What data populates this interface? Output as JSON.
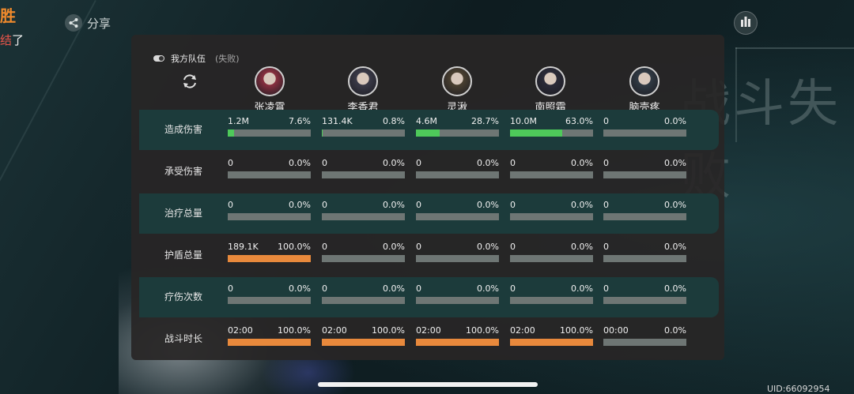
{
  "top": {
    "title": "胜",
    "subtitle_red": "结",
    "subtitle_white": "了",
    "share_label": "分享"
  },
  "panel": {
    "team_label": "我方队伍",
    "team_status": "(失败)"
  },
  "heroes": [
    "张凌霄",
    "李香君",
    "灵湫",
    "南照霜",
    "脑壳疼"
  ],
  "rows": [
    {
      "label": "造成伤害",
      "cells": [
        {
          "value": "1.2M",
          "percent": "7.6%",
          "fill": 0.076,
          "color": "#4ec95a"
        },
        {
          "value": "131.4K",
          "percent": "0.8%",
          "fill": 0.008,
          "color": "#4ec95a"
        },
        {
          "value": "4.6M",
          "percent": "28.7%",
          "fill": 0.287,
          "color": "#4ec95a"
        },
        {
          "value": "10.0M",
          "percent": "63.0%",
          "fill": 0.63,
          "color": "#4ec95a"
        },
        {
          "value": "0",
          "percent": "0.0%",
          "fill": 0,
          "color": "#4ec95a"
        }
      ]
    },
    {
      "label": "承受伤害",
      "cells": [
        {
          "value": "0",
          "percent": "0.0%",
          "fill": 0,
          "color": "#e8893c"
        },
        {
          "value": "0",
          "percent": "0.0%",
          "fill": 0,
          "color": "#e8893c"
        },
        {
          "value": "0",
          "percent": "0.0%",
          "fill": 0,
          "color": "#e8893c"
        },
        {
          "value": "0",
          "percent": "0.0%",
          "fill": 0,
          "color": "#e8893c"
        },
        {
          "value": "0",
          "percent": "0.0%",
          "fill": 0,
          "color": "#e8893c"
        }
      ]
    },
    {
      "label": "治疗总量",
      "cells": [
        {
          "value": "0",
          "percent": "0.0%",
          "fill": 0,
          "color": "#e8893c"
        },
        {
          "value": "0",
          "percent": "0.0%",
          "fill": 0,
          "color": "#e8893c"
        },
        {
          "value": "0",
          "percent": "0.0%",
          "fill": 0,
          "color": "#e8893c"
        },
        {
          "value": "0",
          "percent": "0.0%",
          "fill": 0,
          "color": "#e8893c"
        },
        {
          "value": "0",
          "percent": "0.0%",
          "fill": 0,
          "color": "#e8893c"
        }
      ]
    },
    {
      "label": "护盾总量",
      "cells": [
        {
          "value": "189.1K",
          "percent": "100.0%",
          "fill": 1.0,
          "color": "#e8893c"
        },
        {
          "value": "0",
          "percent": "0.0%",
          "fill": 0,
          "color": "#e8893c"
        },
        {
          "value": "0",
          "percent": "0.0%",
          "fill": 0,
          "color": "#e8893c"
        },
        {
          "value": "0",
          "percent": "0.0%",
          "fill": 0,
          "color": "#e8893c"
        },
        {
          "value": "0",
          "percent": "0.0%",
          "fill": 0,
          "color": "#e8893c"
        }
      ]
    },
    {
      "label": "疗伤次数",
      "cells": [
        {
          "value": "0",
          "percent": "0.0%",
          "fill": 0,
          "color": "#e8893c"
        },
        {
          "value": "0",
          "percent": "0.0%",
          "fill": 0,
          "color": "#e8893c"
        },
        {
          "value": "0",
          "percent": "0.0%",
          "fill": 0,
          "color": "#e8893c"
        },
        {
          "value": "0",
          "percent": "0.0%",
          "fill": 0,
          "color": "#e8893c"
        },
        {
          "value": "0",
          "percent": "0.0%",
          "fill": 0,
          "color": "#e8893c"
        }
      ]
    },
    {
      "label": "战斗时长",
      "cells": [
        {
          "value": "02:00",
          "percent": "100.0%",
          "fill": 1.0,
          "color": "#e8893c"
        },
        {
          "value": "02:00",
          "percent": "100.0%",
          "fill": 1.0,
          "color": "#e8893c"
        },
        {
          "value": "02:00",
          "percent": "100.0%",
          "fill": 1.0,
          "color": "#e8893c"
        },
        {
          "value": "02:00",
          "percent": "100.0%",
          "fill": 1.0,
          "color": "#e8893c"
        },
        {
          "value": "00:00",
          "percent": "0.0%",
          "fill": 0,
          "color": "#e8893c"
        }
      ]
    }
  ],
  "footer": {
    "uid": "UID:66092954"
  }
}
